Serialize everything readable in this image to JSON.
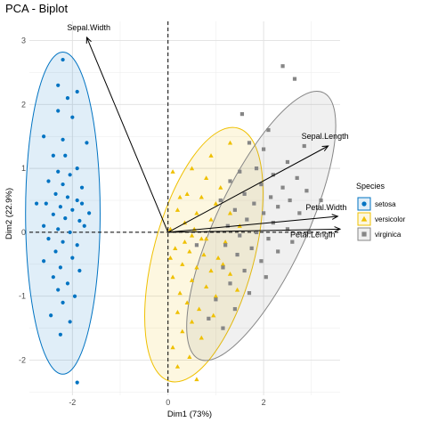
{
  "chart_data": {
    "type": "scatter",
    "title": "PCA - Biplot",
    "xlabel": "Dim1 (73%)",
    "ylabel": "Dim2 (22.9%)",
    "xlim": [
      -2.9,
      3.6
    ],
    "ylim": [
      -2.55,
      3.3
    ],
    "x_ticks": [
      -2,
      0,
      2
    ],
    "y_ticks": [
      -2,
      -1,
      0,
      1,
      2,
      3
    ],
    "grid": true,
    "legend_position": "right",
    "legend_title": "Species",
    "colors": {
      "setosa": "#0073C2",
      "versicolor": "#EFC000",
      "virginica": "#868686"
    },
    "series": [
      {
        "name": "setosa",
        "marker": "circle",
        "ellipse": {
          "cx": -2.2,
          "cy": 0.3,
          "rx": 0.78,
          "ry": 2.52,
          "angle": 0
        },
        "points": [
          [
            -2.2,
            2.7
          ],
          [
            -2.3,
            2.3
          ],
          [
            -1.9,
            2.2
          ],
          [
            -2.1,
            2.1
          ],
          [
            -2.3,
            1.9
          ],
          [
            -2.0,
            1.8
          ],
          [
            -2.6,
            1.5
          ],
          [
            -2.2,
            1.45
          ],
          [
            -1.7,
            1.4
          ],
          [
            -2.4,
            1.2
          ],
          [
            -2.15,
            1.2
          ],
          [
            -1.9,
            1.0
          ],
          [
            -2.3,
            0.95
          ],
          [
            -2.05,
            0.9
          ],
          [
            -2.5,
            0.8
          ],
          [
            -2.2,
            0.75
          ],
          [
            -1.8,
            0.7
          ],
          [
            -2.35,
            0.6
          ],
          [
            -2.1,
            0.55
          ],
          [
            -1.9,
            0.5
          ],
          [
            -2.55,
            0.45
          ],
          [
            -2.25,
            0.4
          ],
          [
            -2.0,
            0.35
          ],
          [
            -1.65,
            0.3
          ],
          [
            -2.4,
            0.28
          ],
          [
            -2.15,
            0.22
          ],
          [
            -1.85,
            0.18
          ],
          [
            -2.75,
            0.45
          ],
          [
            -1.75,
            0.1
          ],
          [
            -2.3,
            0.05
          ],
          [
            -2.05,
            0.0
          ],
          [
            -2.5,
            -0.1
          ],
          [
            -2.2,
            -0.15
          ],
          [
            -1.9,
            -0.2
          ],
          [
            -2.35,
            -0.3
          ],
          [
            -2.0,
            -0.4
          ],
          [
            -2.6,
            -0.45
          ],
          [
            -2.25,
            -0.55
          ],
          [
            -1.85,
            -0.6
          ],
          [
            -2.4,
            -0.7
          ],
          [
            -2.1,
            -0.8
          ],
          [
            -2.3,
            -0.9
          ],
          [
            -1.95,
            -1.0
          ],
          [
            -2.2,
            -1.1
          ],
          [
            -2.45,
            -1.3
          ],
          [
            -2.05,
            -1.4
          ],
          [
            -2.25,
            -1.6
          ],
          [
            -1.8,
            0.45
          ],
          [
            -2.6,
            0.1
          ],
          [
            -1.9,
            -2.35
          ]
        ]
      },
      {
        "name": "versicolor",
        "marker": "triangle",
        "ellipse": {
          "cx": 0.75,
          "cy": -0.35,
          "rx": 1.05,
          "ry": 2.05,
          "angle": 15
        },
        "points": [
          [
            1.3,
            1.4
          ],
          [
            0.9,
            1.2
          ],
          [
            0.5,
            1.0
          ],
          [
            0.1,
            0.95
          ],
          [
            0.8,
            0.85
          ],
          [
            1.1,
            0.7
          ],
          [
            0.4,
            0.6
          ],
          [
            0.7,
            0.55
          ],
          [
            1.0,
            0.45
          ],
          [
            0.2,
            0.35
          ],
          [
            0.6,
            0.3
          ],
          [
            1.3,
            0.3
          ],
          [
            0.9,
            0.2
          ],
          [
            0.35,
            0.15
          ],
          [
            1.5,
            0.1
          ],
          [
            0.05,
            0.05
          ],
          [
            0.5,
            -0.05
          ],
          [
            0.8,
            -0.1
          ],
          [
            1.2,
            -0.15
          ],
          [
            0.15,
            -0.25
          ],
          [
            0.45,
            -0.3
          ],
          [
            0.75,
            -0.35
          ],
          [
            1.05,
            -0.4
          ],
          [
            0.3,
            -0.5
          ],
          [
            0.6,
            -0.55
          ],
          [
            0.9,
            -0.6
          ],
          [
            0.1,
            -0.7
          ],
          [
            1.3,
            -0.65
          ],
          [
            0.5,
            -0.75
          ],
          [
            0.8,
            -0.85
          ],
          [
            0.25,
            -0.95
          ],
          [
            1.0,
            -1.0
          ],
          [
            0.4,
            -1.1
          ],
          [
            0.65,
            -1.2
          ],
          [
            0.2,
            -1.25
          ],
          [
            0.95,
            -1.3
          ],
          [
            0.5,
            -1.4
          ],
          [
            0.3,
            -1.55
          ],
          [
            0.7,
            -1.65
          ],
          [
            0.1,
            -1.8
          ],
          [
            0.45,
            -1.95
          ],
          [
            0.2,
            -2.1
          ],
          [
            0.35,
            -0.15
          ],
          [
            0.7,
            -0.1
          ],
          [
            1.15,
            -0.5
          ],
          [
            0.55,
            0.05
          ],
          [
            0.25,
            0.55
          ],
          [
            1.45,
            -0.9
          ],
          [
            0.6,
            -2.3
          ],
          [
            0.05,
            -0.4
          ]
        ]
      },
      {
        "name": "virginica",
        "marker": "square",
        "ellipse": {
          "cx": 1.95,
          "cy": 0.1,
          "rx": 0.95,
          "ry": 2.3,
          "angle": 25
        },
        "points": [
          [
            2.4,
            2.6
          ],
          [
            2.65,
            2.4
          ],
          [
            2.1,
            1.6
          ],
          [
            1.7,
            1.4
          ],
          [
            2.0,
            1.3
          ],
          [
            2.5,
            1.1
          ],
          [
            1.85,
            1.0
          ],
          [
            1.5,
            0.95
          ],
          [
            2.2,
            0.9
          ],
          [
            2.7,
            0.85
          ],
          [
            1.3,
            0.8
          ],
          [
            1.95,
            0.75
          ],
          [
            2.4,
            0.7
          ],
          [
            2.9,
            0.65
          ],
          [
            1.6,
            0.6
          ],
          [
            2.15,
            0.55
          ],
          [
            1.1,
            0.5
          ],
          [
            2.55,
            0.5
          ],
          [
            1.8,
            0.45
          ],
          [
            2.3,
            0.4
          ],
          [
            1.4,
            0.35
          ],
          [
            2.0,
            0.3
          ],
          [
            2.75,
            0.3
          ],
          [
            1.65,
            0.2
          ],
          [
            2.2,
            0.15
          ],
          [
            1.25,
            0.1
          ],
          [
            2.5,
            0.05
          ],
          [
            1.85,
            0.0
          ],
          [
            2.95,
            0.0
          ],
          [
            1.5,
            -0.05
          ],
          [
            2.1,
            -0.1
          ],
          [
            2.6,
            -0.15
          ],
          [
            1.2,
            -0.2
          ],
          [
            1.75,
            -0.25
          ],
          [
            2.3,
            -0.3
          ],
          [
            1.45,
            -0.35
          ],
          [
            1.95,
            -0.45
          ],
          [
            1.15,
            -0.55
          ],
          [
            1.6,
            -0.6
          ],
          [
            2.05,
            -0.7
          ],
          [
            1.3,
            -0.8
          ],
          [
            1.7,
            -0.95
          ],
          [
            1.0,
            -1.05
          ],
          [
            1.4,
            -1.2
          ],
          [
            0.85,
            -1.35
          ],
          [
            1.15,
            -1.5
          ],
          [
            3.2,
            0.5
          ],
          [
            2.85,
            1.35
          ],
          [
            1.55,
            1.85
          ],
          [
            0.6,
            -0.2
          ]
        ]
      }
    ],
    "variables": [
      {
        "name": "Sepal.Width",
        "x": -1.7,
        "y": 3.05
      },
      {
        "name": "Sepal.Length",
        "x": 3.35,
        "y": 1.35
      },
      {
        "name": "Petal.Width",
        "x": 3.55,
        "y": 0.25
      },
      {
        "name": "Petal.Length",
        "x": 3.6,
        "y": 0.05
      }
    ]
  }
}
